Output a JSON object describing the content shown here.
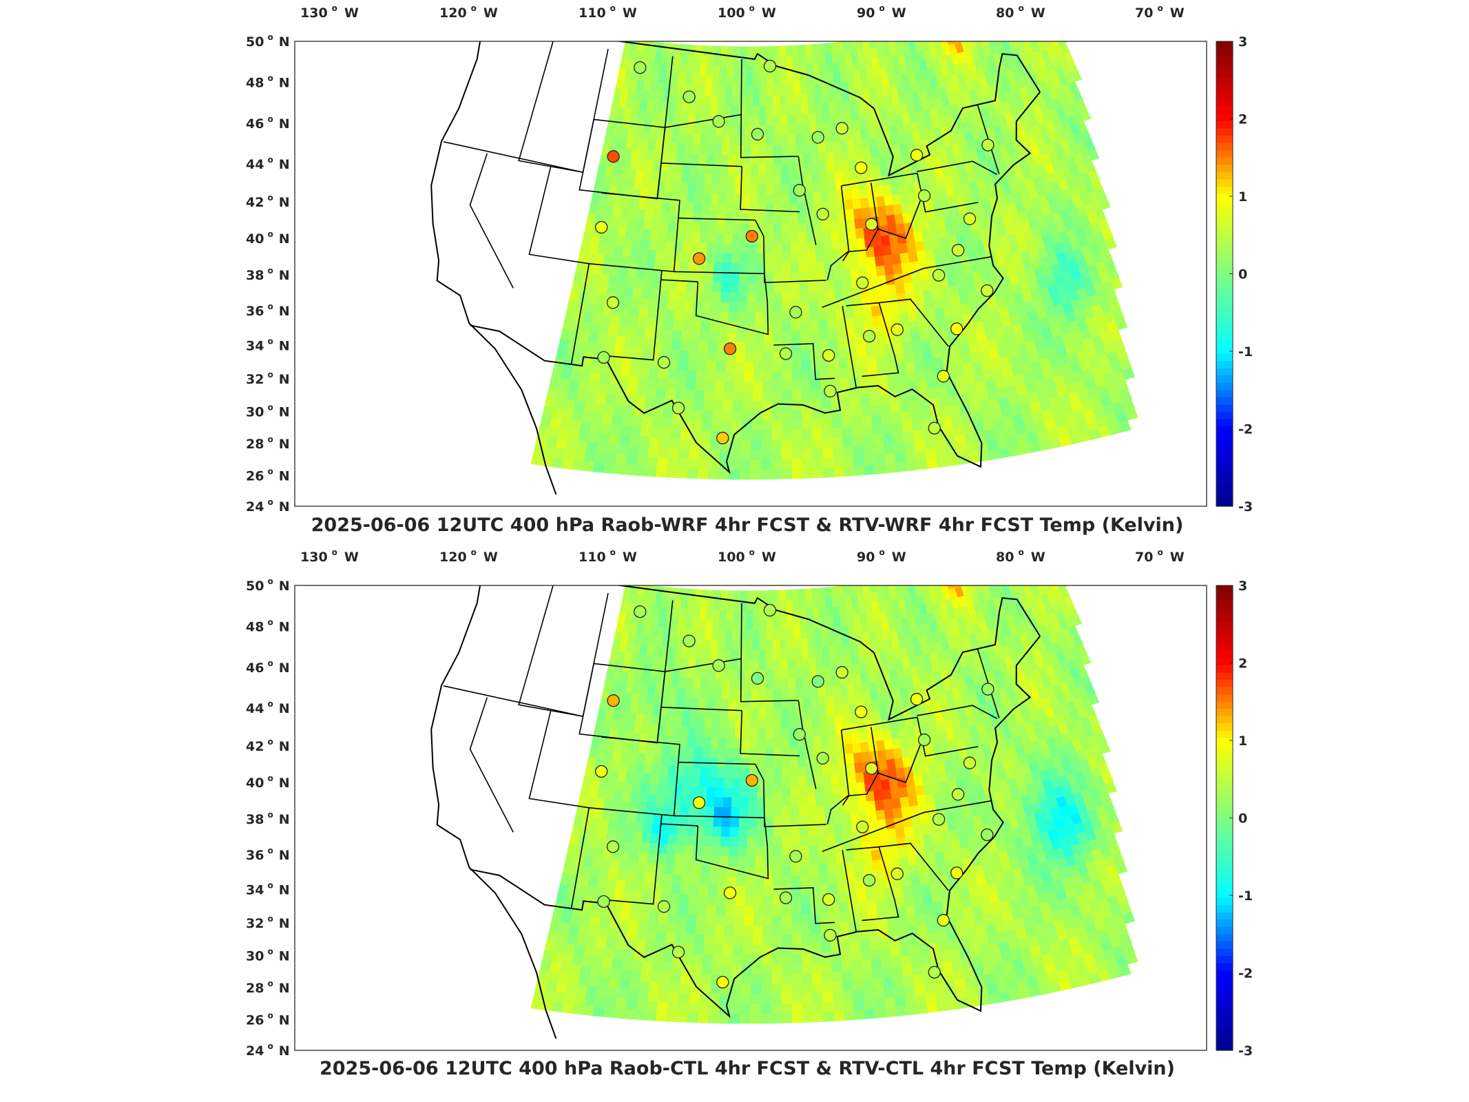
{
  "panels": [
    {
      "title": "2025-06-06 12UTC 400 hPa Raob-WRF 4hr FCST & RTV-WRF 4hr FCST Temp (Kelvin)",
      "colorbar": {
        "min": -3,
        "max": 3,
        "ticks": [
          "3",
          "2",
          "1",
          "0",
          "-1",
          "-2",
          "-3"
        ]
      },
      "stations": [
        {
          "lon": -107.3,
          "lat": 48.2,
          "value": 0.3
        },
        {
          "lon": -101.9,
          "lat": 46.8,
          "value": 0.3
        },
        {
          "lon": -98.8,
          "lat": 45.5,
          "value": 0.3
        },
        {
          "lon": -95.0,
          "lat": 44.8,
          "value": 0.2
        },
        {
          "lon": -93.6,
          "lat": 48.6,
          "value": 0.4
        },
        {
          "lon": -89.2,
          "lat": 44.5,
          "value": 0.2
        },
        {
          "lon": -86.8,
          "lat": 44.9,
          "value": 0.6
        },
        {
          "lon": -91.3,
          "lat": 41.6,
          "value": 0.3
        },
        {
          "lon": -89.4,
          "lat": 40.2,
          "value": 0.5
        },
        {
          "lon": -85.5,
          "lat": 42.6,
          "value": 1.0
        },
        {
          "lon": -80.2,
          "lat": 42.9,
          "value": 0.9
        },
        {
          "lon": -73.5,
          "lat": 42.7,
          "value": 0.5
        },
        {
          "lon": -80.3,
          "lat": 40.6,
          "value": 0.4
        },
        {
          "lon": -85.3,
          "lat": 39.4,
          "value": 0.7
        },
        {
          "lon": -76.9,
          "lat": 38.9,
          "value": 0.7
        },
        {
          "lon": -78.5,
          "lat": 37.3,
          "value": 0.6
        },
        {
          "lon": -80.5,
          "lat": 36.1,
          "value": 0.5
        },
        {
          "lon": -86.7,
          "lat": 36.2,
          "value": 0.6
        },
        {
          "lon": -77.0,
          "lat": 34.8,
          "value": 0.6
        },
        {
          "lon": -80.0,
          "lat": 33.0,
          "value": 1.0
        },
        {
          "lon": -84.5,
          "lat": 33.4,
          "value": 0.8
        },
        {
          "lon": -86.7,
          "lat": 33.2,
          "value": 0.4
        },
        {
          "lon": -89.9,
          "lat": 32.3,
          "value": 0.7
        },
        {
          "lon": -93.1,
          "lat": 32.5,
          "value": 0.4
        },
        {
          "lon": -92.2,
          "lat": 34.8,
          "value": 0.3
        },
        {
          "lon": -81.7,
          "lat": 30.5,
          "value": 0.8
        },
        {
          "lon": -83.0,
          "lat": 27.7,
          "value": 0.5
        },
        {
          "lon": -90.0,
          "lat": 30.3,
          "value": 0.5
        },
        {
          "lon": -97.7,
          "lat": 27.8,
          "value": 1.2
        },
        {
          "lon": -100.9,
          "lat": 29.4,
          "value": 0.4
        },
        {
          "lon": -97.3,
          "lat": 32.8,
          "value": 1.5
        },
        {
          "lon": -102.2,
          "lat": 31.9,
          "value": 0.4
        },
        {
          "lon": -106.7,
          "lat": 31.9,
          "value": 0.3
        },
        {
          "lon": -106.6,
          "lat": 35.0,
          "value": 0.6
        },
        {
          "lon": -100.0,
          "lat": 37.8,
          "value": 1.4
        },
        {
          "lon": -95.6,
          "lat": 39.1,
          "value": 1.5
        },
        {
          "lon": -108.5,
          "lat": 39.1,
          "value": 0.9
        },
        {
          "lon": -108.5,
          "lat": 43.1,
          "value": 1.7
        }
      ]
    },
    {
      "title": "2025-06-06 12UTC 400 hPa Raob-CTL 4hr FCST & RTV-CTL 4hr FCST Temp (Kelvin)",
      "colorbar": {
        "min": -3,
        "max": 3,
        "ticks": [
          "3",
          "2",
          "1",
          "0",
          "-1",
          "-2",
          "-3"
        ]
      },
      "stations": [
        {
          "lon": -107.3,
          "lat": 48.2,
          "value": 0.3
        },
        {
          "lon": -101.9,
          "lat": 46.8,
          "value": 0.3
        },
        {
          "lon": -98.8,
          "lat": 45.5,
          "value": 0.3
        },
        {
          "lon": -95.0,
          "lat": 44.8,
          "value": 0.0
        },
        {
          "lon": -93.6,
          "lat": 48.6,
          "value": 0.4
        },
        {
          "lon": -89.2,
          "lat": 44.5,
          "value": 0.0
        },
        {
          "lon": -86.8,
          "lat": 44.9,
          "value": 0.6
        },
        {
          "lon": -91.3,
          "lat": 41.6,
          "value": 0.2
        },
        {
          "lon": -89.4,
          "lat": 40.2,
          "value": 0.3
        },
        {
          "lon": -85.5,
          "lat": 42.6,
          "value": 0.9
        },
        {
          "lon": -80.2,
          "lat": 42.9,
          "value": 0.9
        },
        {
          "lon": -73.5,
          "lat": 42.7,
          "value": 0.2
        },
        {
          "lon": -80.3,
          "lat": 40.6,
          "value": 0.3
        },
        {
          "lon": -85.3,
          "lat": 39.4,
          "value": 0.7
        },
        {
          "lon": -76.9,
          "lat": 38.9,
          "value": 0.6
        },
        {
          "lon": -78.5,
          "lat": 37.3,
          "value": 0.5
        },
        {
          "lon": -80.5,
          "lat": 36.1,
          "value": 0.4
        },
        {
          "lon": -86.7,
          "lat": 36.2,
          "value": 0.6
        },
        {
          "lon": -77.0,
          "lat": 34.8,
          "value": 0.2
        },
        {
          "lon": -80.0,
          "lat": 33.0,
          "value": 0.9
        },
        {
          "lon": -84.5,
          "lat": 33.4,
          "value": 0.7
        },
        {
          "lon": -86.7,
          "lat": 33.2,
          "value": 0.3
        },
        {
          "lon": -89.9,
          "lat": 32.3,
          "value": 0.7
        },
        {
          "lon": -93.1,
          "lat": 32.5,
          "value": 0.3
        },
        {
          "lon": -92.2,
          "lat": 34.8,
          "value": 0.3
        },
        {
          "lon": -81.7,
          "lat": 30.5,
          "value": 0.8
        },
        {
          "lon": -83.0,
          "lat": 27.7,
          "value": 0.4
        },
        {
          "lon": -90.0,
          "lat": 30.3,
          "value": 0.5
        },
        {
          "lon": -97.7,
          "lat": 27.8,
          "value": 1.0
        },
        {
          "lon": -100.9,
          "lat": 29.4,
          "value": 0.4
        },
        {
          "lon": -97.3,
          "lat": 32.8,
          "value": 0.9
        },
        {
          "lon": -102.2,
          "lat": 31.9,
          "value": 0.4
        },
        {
          "lon": -106.7,
          "lat": 31.9,
          "value": 0.3
        },
        {
          "lon": -106.6,
          "lat": 35.0,
          "value": 0.4
        },
        {
          "lon": -100.0,
          "lat": 37.8,
          "value": 0.9
        },
        {
          "lon": -95.6,
          "lat": 39.1,
          "value": 1.3
        },
        {
          "lon": -108.5,
          "lat": 39.1,
          "value": 0.9
        },
        {
          "lon": -108.5,
          "lat": 43.1,
          "value": 1.3
        }
      ]
    }
  ],
  "lon_labels": [
    "130",
    "120",
    "110",
    "100",
    "90",
    "80",
    "70"
  ],
  "lon_dir": "W",
  "lat_labels": [
    "50",
    "48",
    "46",
    "44",
    "42",
    "40",
    "38",
    "36",
    "34",
    "32",
    "30",
    "28",
    "26",
    "24"
  ],
  "lat_dir": "N",
  "colorscale": [
    "#00008f",
    "#0000ff",
    "#00ffff",
    "#7fff7f",
    "#ffff00",
    "#ff0000",
    "#7f0000"
  ]
}
